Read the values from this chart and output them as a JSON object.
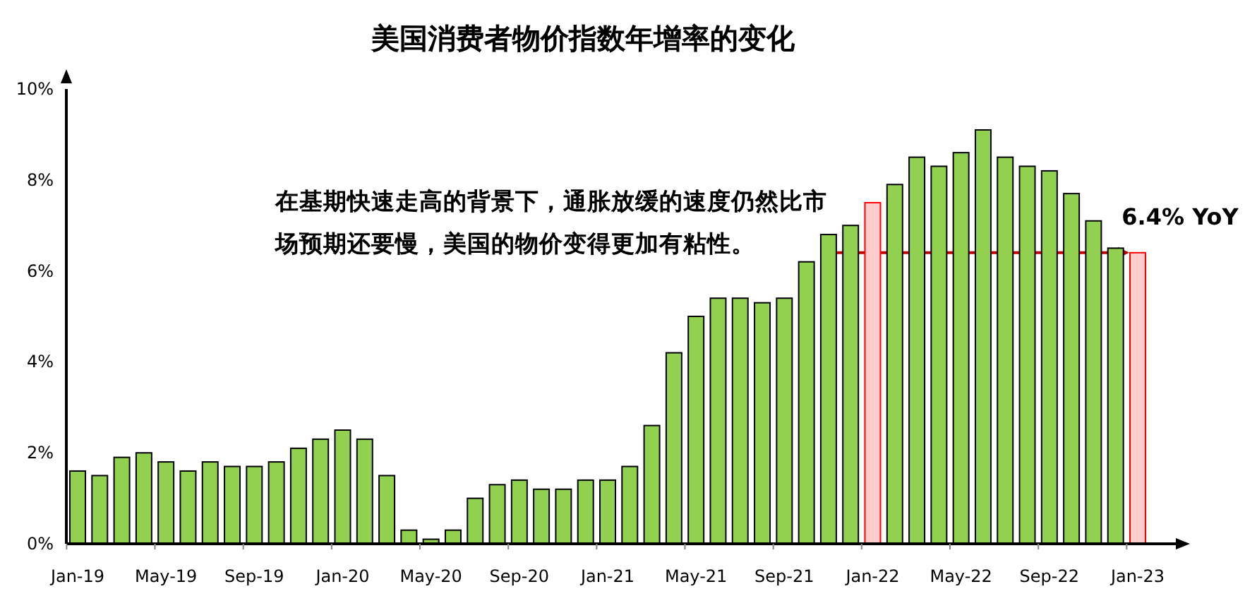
{
  "chart_data": {
    "type": "bar",
    "title": "美国消费者物价指数年增率的变化",
    "categories": [
      "Jan-19",
      null,
      null,
      null,
      "May-19",
      null,
      null,
      null,
      "Sep-19",
      null,
      null,
      null,
      "Jan-20",
      null,
      null,
      null,
      "May-20",
      null,
      null,
      null,
      "Sep-20",
      null,
      null,
      null,
      "Jan-21",
      null,
      null,
      null,
      "May-21",
      null,
      null,
      null,
      "Sep-21",
      null,
      null,
      null,
      "Jan-22",
      null,
      null,
      null,
      "May-22",
      null,
      null,
      null,
      "Sep-22",
      null,
      null,
      null,
      "Jan-23"
    ],
    "values": [
      1.6,
      1.5,
      1.9,
      2.0,
      1.8,
      1.6,
      1.8,
      1.7,
      1.7,
      1.8,
      2.1,
      2.3,
      2.5,
      2.3,
      1.5,
      0.3,
      0.1,
      0.3,
      1.0,
      1.3,
      1.4,
      1.2,
      1.2,
      1.4,
      1.4,
      1.7,
      2.6,
      4.2,
      5.0,
      5.4,
      5.4,
      5.3,
      5.4,
      6.2,
      6.8,
      7.0,
      7.5,
      7.9,
      8.5,
      8.3,
      8.6,
      9.1,
      8.5,
      8.3,
      8.2,
      7.7,
      7.1,
      6.5,
      6.4
    ],
    "colors": [
      "#92d050",
      "#92d050",
      "#92d050",
      "#92d050",
      "#92d050",
      "#92d050",
      "#92d050",
      "#92d050",
      "#92d050",
      "#92d050",
      "#92d050",
      "#92d050",
      "#92d050",
      "#92d050",
      "#92d050",
      "#92d050",
      "#92d050",
      "#92d050",
      "#92d050",
      "#92d050",
      "#92d050",
      "#92d050",
      "#92d050",
      "#92d050",
      "#92d050",
      "#92d050",
      "#92d050",
      "#92d050",
      "#92d050",
      "#92d050",
      "#92d050",
      "#92d050",
      "#92d050",
      "#92d050",
      "#92d050",
      "#92d050",
      "#ffcccc",
      "#92d050",
      "#92d050",
      "#92d050",
      "#92d050",
      "#92d050",
      "#92d050",
      "#92d050",
      "#92d050",
      "#92d050",
      "#92d050",
      "#92d050",
      "#ffcccc"
    ],
    "ylim": [
      0,
      10
    ],
    "yticks": [
      {
        "value": 0,
        "label": "0%"
      },
      {
        "value": 2,
        "label": "2%"
      },
      {
        "value": 4,
        "label": "4%"
      },
      {
        "value": 6,
        "label": "6%"
      },
      {
        "value": 8,
        "label": "8%"
      },
      {
        "value": 10,
        "label": "10%"
      }
    ],
    "annotations": [
      "在基期快速走高的背景下，通胀放缓的速度仍然比市场预期还要慢，美国的物价变得更加有粘性。",
      {
        "text": "6.4% YoY",
        "x": "Jan-23",
        "y": 6.4
      }
    ]
  }
}
